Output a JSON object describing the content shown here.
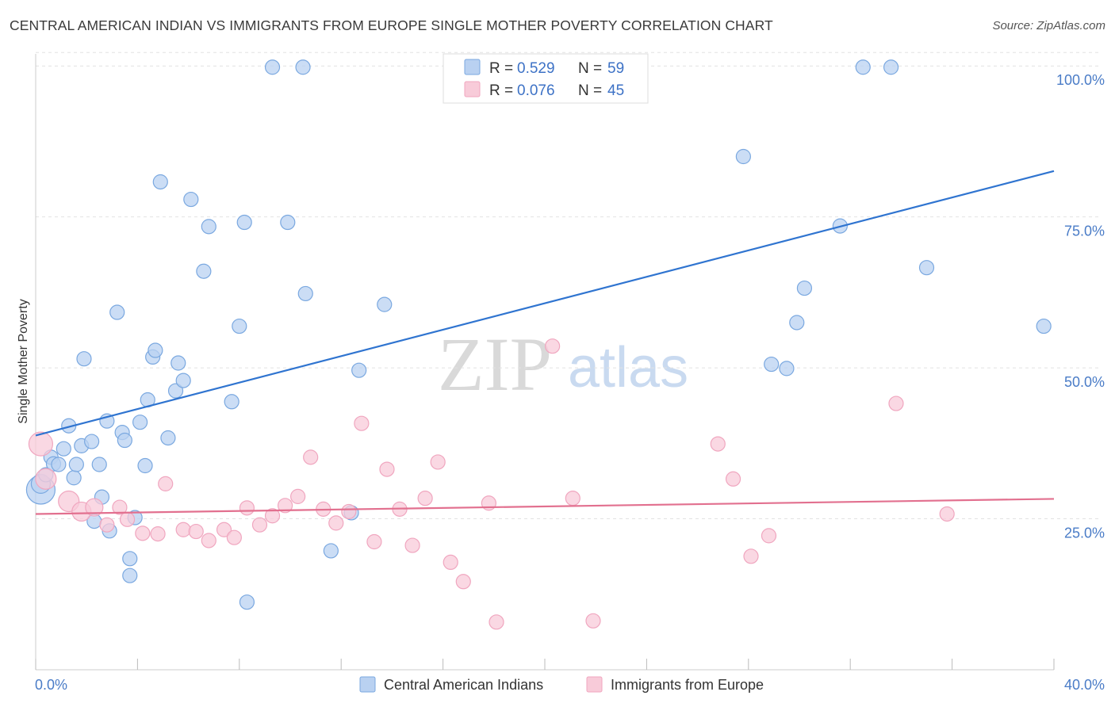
{
  "title": "CENTRAL AMERICAN INDIAN VS IMMIGRANTS FROM EUROPE SINGLE MOTHER POVERTY CORRELATION CHART",
  "source": "Source: ZipAtlas.com",
  "watermark": {
    "zip": "ZIP",
    "atlas": "atlas"
  },
  "chart_data": {
    "type": "scatter",
    "ylabel": "Single Mother Poverty",
    "xlabel": "",
    "xlim": [
      0,
      40
    ],
    "ylim": [
      0,
      102
    ],
    "x_tick_labels": [
      {
        "value": 0,
        "label": "0.0%"
      },
      {
        "value": 40,
        "label": "40.0%"
      }
    ],
    "y_tick_labels": [
      {
        "value": 25,
        "label": "25.0%"
      },
      {
        "value": 50,
        "label": "50.0%"
      },
      {
        "value": 75,
        "label": "75.0%"
      },
      {
        "value": 100,
        "label": "100.0%"
      }
    ],
    "legend": {
      "placement": "top-center",
      "entries": [
        {
          "r_label": "R = ",
          "r_value": "0.529",
          "n_label": "N = ",
          "n_value": "59"
        },
        {
          "r_label": "R = ",
          "r_value": "0.076",
          "n_label": "N = ",
          "n_value": "45"
        }
      ]
    },
    "grid": true,
    "series": [
      {
        "name": "Central American Indians",
        "color": "#7aa8e0",
        "fill": "#b9d1f1",
        "line_color": "#2f74d0",
        "trend": {
          "x": [
            0,
            40
          ],
          "y": [
            38.8,
            82.6
          ]
        },
        "points": [
          {
            "x": 0.2,
            "y": 29.8,
            "s": 18
          },
          {
            "x": 0.2,
            "y": 30.8,
            "s": 12
          },
          {
            "x": 0.4,
            "y": 32.3,
            "s": 9
          },
          {
            "x": 0.6,
            "y": 35.2,
            "s": 9
          },
          {
            "x": 0.7,
            "y": 34.1,
            "s": 9
          },
          {
            "x": 0.9,
            "y": 34.0,
            "s": 9
          },
          {
            "x": 1.1,
            "y": 36.6,
            "s": 9
          },
          {
            "x": 1.3,
            "y": 40.4,
            "s": 9
          },
          {
            "x": 1.5,
            "y": 31.8,
            "s": 9
          },
          {
            "x": 1.6,
            "y": 34.0,
            "s": 9
          },
          {
            "x": 1.8,
            "y": 37.1,
            "s": 9
          },
          {
            "x": 1.9,
            "y": 51.5,
            "s": 9
          },
          {
            "x": 2.2,
            "y": 37.8,
            "s": 9
          },
          {
            "x": 2.3,
            "y": 24.6,
            "s": 9
          },
          {
            "x": 2.5,
            "y": 34.0,
            "s": 9
          },
          {
            "x": 2.6,
            "y": 28.6,
            "s": 9
          },
          {
            "x": 2.8,
            "y": 41.2,
            "s": 9
          },
          {
            "x": 2.9,
            "y": 23.0,
            "s": 9
          },
          {
            "x": 3.2,
            "y": 59.2,
            "s": 9
          },
          {
            "x": 3.4,
            "y": 39.3,
            "s": 9
          },
          {
            "x": 3.5,
            "y": 38.0,
            "s": 9
          },
          {
            "x": 3.7,
            "y": 18.4,
            "s": 9
          },
          {
            "x": 3.7,
            "y": 15.6,
            "s": 9
          },
          {
            "x": 3.9,
            "y": 25.2,
            "s": 9
          },
          {
            "x": 4.1,
            "y": 41.0,
            "s": 9
          },
          {
            "x": 4.3,
            "y": 33.8,
            "s": 9
          },
          {
            "x": 4.4,
            "y": 44.7,
            "s": 9
          },
          {
            "x": 4.6,
            "y": 51.8,
            "s": 9
          },
          {
            "x": 4.7,
            "y": 52.9,
            "s": 9
          },
          {
            "x": 4.9,
            "y": 80.8,
            "s": 9
          },
          {
            "x": 5.2,
            "y": 38.4,
            "s": 9
          },
          {
            "x": 5.5,
            "y": 46.2,
            "s": 9
          },
          {
            "x": 5.6,
            "y": 50.8,
            "s": 9
          },
          {
            "x": 5.8,
            "y": 47.9,
            "s": 9
          },
          {
            "x": 6.1,
            "y": 77.9,
            "s": 9
          },
          {
            "x": 6.6,
            "y": 66.0,
            "s": 9
          },
          {
            "x": 6.8,
            "y": 73.4,
            "s": 9
          },
          {
            "x": 7.7,
            "y": 44.4,
            "s": 9
          },
          {
            "x": 8.0,
            "y": 56.9,
            "s": 9
          },
          {
            "x": 8.2,
            "y": 74.1,
            "s": 9
          },
          {
            "x": 8.3,
            "y": 11.2,
            "s": 9
          },
          {
            "x": 9.3,
            "y": 99.8,
            "s": 9
          },
          {
            "x": 9.9,
            "y": 74.1,
            "s": 9
          },
          {
            "x": 10.5,
            "y": 99.8,
            "s": 9
          },
          {
            "x": 10.6,
            "y": 62.3,
            "s": 9
          },
          {
            "x": 11.6,
            "y": 19.7,
            "s": 9
          },
          {
            "x": 12.4,
            "y": 26.0,
            "s": 9
          },
          {
            "x": 12.7,
            "y": 49.6,
            "s": 9
          },
          {
            "x": 13.7,
            "y": 60.5,
            "s": 9
          },
          {
            "x": 27.8,
            "y": 85.0,
            "s": 9
          },
          {
            "x": 28.9,
            "y": 50.6,
            "s": 9
          },
          {
            "x": 29.5,
            "y": 49.9,
            "s": 9
          },
          {
            "x": 29.9,
            "y": 57.5,
            "s": 9
          },
          {
            "x": 30.2,
            "y": 63.2,
            "s": 9
          },
          {
            "x": 31.6,
            "y": 73.5,
            "s": 9
          },
          {
            "x": 32.5,
            "y": 99.8,
            "s": 9
          },
          {
            "x": 33.6,
            "y": 99.8,
            "s": 9
          },
          {
            "x": 35.0,
            "y": 66.6,
            "s": 9
          },
          {
            "x": 39.6,
            "y": 56.9,
            "s": 9
          }
        ]
      },
      {
        "name": "Immigrants from Europe",
        "color": "#f0a6bf",
        "fill": "#f8cbd9",
        "line_color": "#e2708f",
        "trend": {
          "x": [
            0,
            40
          ],
          "y": [
            25.8,
            28.3
          ]
        },
        "points": [
          {
            "x": 0.2,
            "y": 37.4,
            "s": 15
          },
          {
            "x": 0.4,
            "y": 31.6,
            "s": 13
          },
          {
            "x": 1.3,
            "y": 27.9,
            "s": 13
          },
          {
            "x": 1.8,
            "y": 26.2,
            "s": 12
          },
          {
            "x": 2.3,
            "y": 26.9,
            "s": 11
          },
          {
            "x": 2.8,
            "y": 24.0,
            "s": 9
          },
          {
            "x": 3.3,
            "y": 26.9,
            "s": 9
          },
          {
            "x": 3.6,
            "y": 24.9,
            "s": 9
          },
          {
            "x": 4.2,
            "y": 22.6,
            "s": 9
          },
          {
            "x": 4.8,
            "y": 22.5,
            "s": 9
          },
          {
            "x": 5.1,
            "y": 30.8,
            "s": 9
          },
          {
            "x": 5.8,
            "y": 23.2,
            "s": 9
          },
          {
            "x": 6.3,
            "y": 22.9,
            "s": 9
          },
          {
            "x": 6.8,
            "y": 21.4,
            "s": 9
          },
          {
            "x": 7.4,
            "y": 23.2,
            "s": 9
          },
          {
            "x": 7.8,
            "y": 21.9,
            "s": 9
          },
          {
            "x": 8.3,
            "y": 26.8,
            "s": 9
          },
          {
            "x": 8.8,
            "y": 24.0,
            "s": 9
          },
          {
            "x": 9.3,
            "y": 25.5,
            "s": 9
          },
          {
            "x": 9.8,
            "y": 27.2,
            "s": 9
          },
          {
            "x": 10.3,
            "y": 28.7,
            "s": 9
          },
          {
            "x": 10.8,
            "y": 35.2,
            "s": 9
          },
          {
            "x": 11.3,
            "y": 26.6,
            "s": 9
          },
          {
            "x": 11.8,
            "y": 24.3,
            "s": 9
          },
          {
            "x": 12.3,
            "y": 26.2,
            "s": 9
          },
          {
            "x": 12.8,
            "y": 40.8,
            "s": 9
          },
          {
            "x": 13.3,
            "y": 21.2,
            "s": 9
          },
          {
            "x": 13.8,
            "y": 33.2,
            "s": 9
          },
          {
            "x": 14.3,
            "y": 26.6,
            "s": 9
          },
          {
            "x": 14.8,
            "y": 20.6,
            "s": 9
          },
          {
            "x": 15.3,
            "y": 28.4,
            "s": 9
          },
          {
            "x": 15.8,
            "y": 34.4,
            "s": 9
          },
          {
            "x": 16.3,
            "y": 17.8,
            "s": 9
          },
          {
            "x": 16.8,
            "y": 14.6,
            "s": 9
          },
          {
            "x": 17.8,
            "y": 27.6,
            "s": 9
          },
          {
            "x": 18.1,
            "y": 7.9,
            "s": 9
          },
          {
            "x": 20.3,
            "y": 53.6,
            "s": 9
          },
          {
            "x": 21.1,
            "y": 28.4,
            "s": 9
          },
          {
            "x": 21.9,
            "y": 8.1,
            "s": 9
          },
          {
            "x": 26.8,
            "y": 37.4,
            "s": 9
          },
          {
            "x": 27.4,
            "y": 31.6,
            "s": 9
          },
          {
            "x": 28.1,
            "y": 18.8,
            "s": 9
          },
          {
            "x": 28.8,
            "y": 22.2,
            "s": 9
          },
          {
            "x": 33.8,
            "y": 44.1,
            "s": 9
          },
          {
            "x": 35.8,
            "y": 25.8,
            "s": 9
          }
        ]
      }
    ]
  }
}
